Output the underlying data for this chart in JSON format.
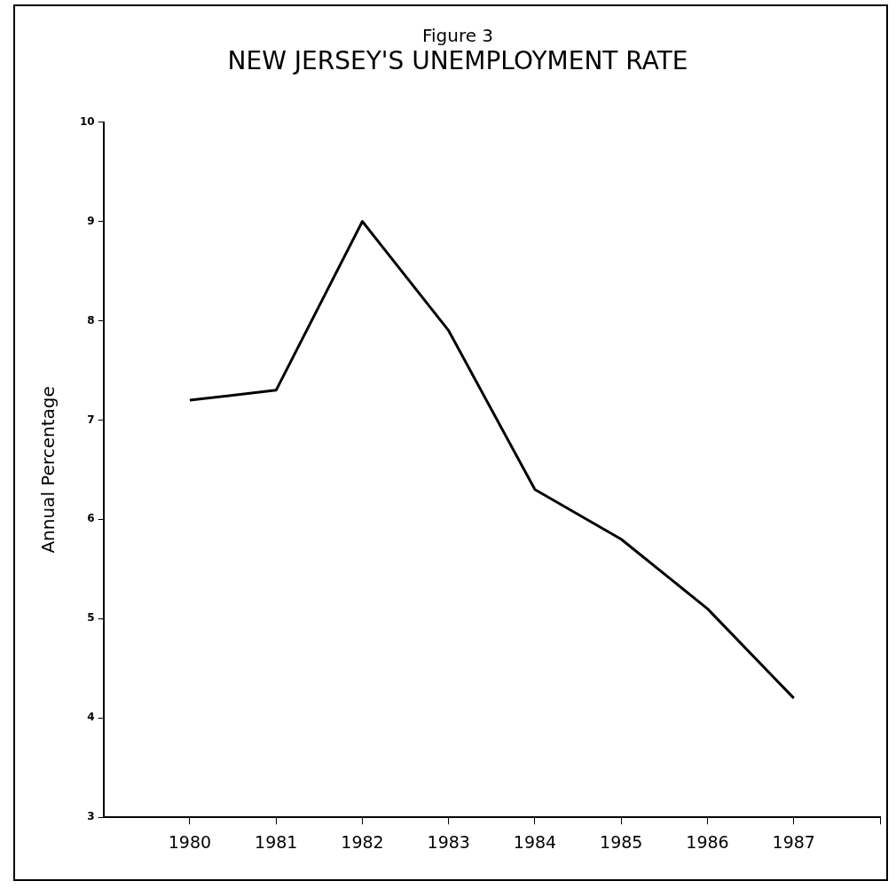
{
  "chart_data": {
    "type": "line",
    "title": "Figure 3",
    "subtitle": "NEW JERSEY'S UNEMPLOYMENT RATE",
    "ylabel": "Annual Percentage",
    "x": [
      1980,
      1981,
      1982,
      1983,
      1984,
      1985,
      1986,
      1987
    ],
    "values": [
      7.2,
      7.3,
      9.0,
      7.9,
      6.3,
      5.8,
      5.1,
      4.2
    ],
    "color": "#000000",
    "xlim": [
      1979,
      1988
    ],
    "xticks": [
      1980,
      1981,
      1982,
      1983,
      1984,
      1985,
      1986,
      1987,
      {
        "value": 1988,
        "label": null
      }
    ],
    "ylim": [
      3,
      10
    ],
    "yticks": [
      3,
      4,
      5,
      6,
      7,
      8,
      9,
      10
    ],
    "grid": false,
    "legend": false,
    "marker": "none",
    "line_style": "solid"
  }
}
